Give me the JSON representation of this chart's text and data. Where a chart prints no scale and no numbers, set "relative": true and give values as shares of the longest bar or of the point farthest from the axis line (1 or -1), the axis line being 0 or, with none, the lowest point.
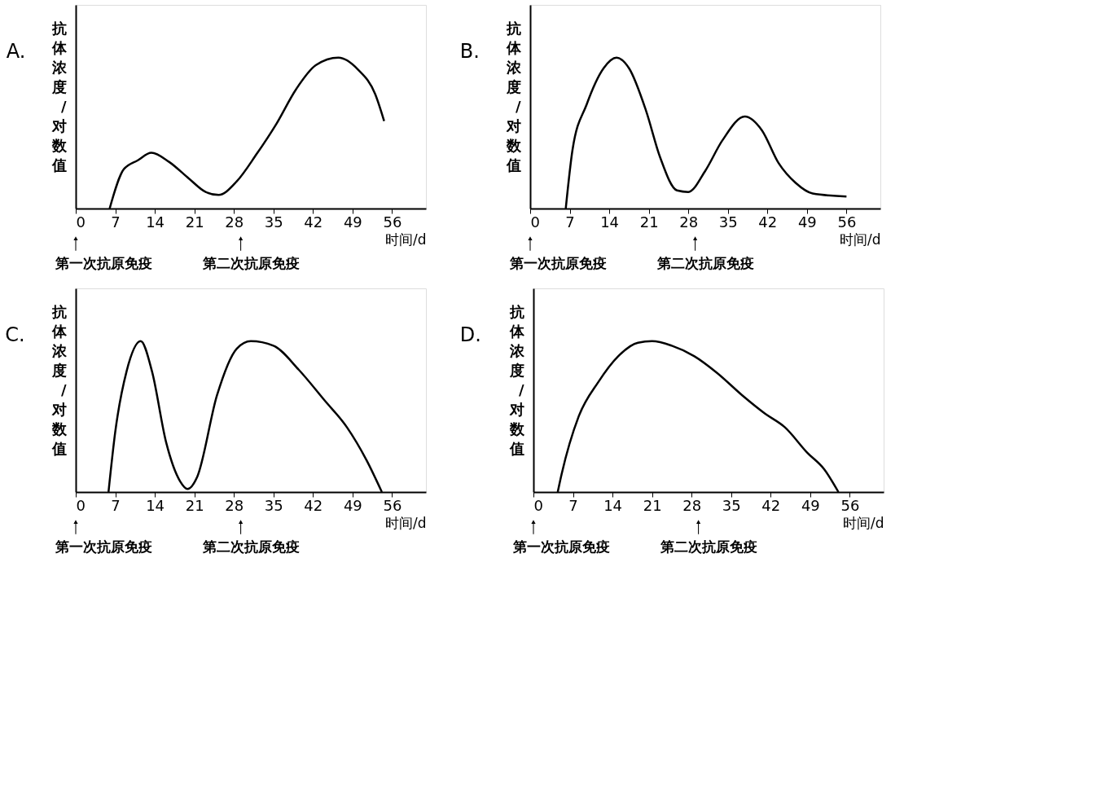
{
  "chart_data": [
    {
      "type": "line",
      "title": "A.",
      "xlabel": "时间/d",
      "ylabel": "抗体浓度/对数值",
      "relative": true,
      "xlim": [
        0,
        62
      ],
      "xticks": [
        0,
        7,
        14,
        21,
        28,
        35,
        42,
        49,
        56
      ],
      "x": [
        6,
        8.5,
        11,
        13.4,
        16.5,
        20,
        23,
        25.3,
        28.5,
        32,
        35.5,
        39,
        42.5,
        46.5,
        50,
        53,
        54.6
      ],
      "series": [
        {
          "color": "#000000",
          "values": [
            0,
            0.26,
            0.32,
            0.37,
            0.31,
            0.2,
            0.11,
            0.09,
            0.18,
            0.36,
            0.56,
            0.79,
            0.95,
            1,
            0.92,
            0.76,
            0.58
          ]
        }
      ],
      "annotations": [
        "第一次抗原免疫",
        "第二次抗原免疫"
      ]
    },
    {
      "type": "line",
      "title": "B.",
      "xlabel": "时间/d",
      "ylabel": "抗体浓度/对数值",
      "relative": true,
      "xlim": [
        0,
        62
      ],
      "xticks": [
        0,
        7,
        14,
        21,
        28,
        35,
        42,
        49,
        56
      ],
      "x": [
        6.3,
        7.5,
        10,
        13,
        15.3,
        17.5,
        20.5,
        23,
        26,
        28,
        31,
        34,
        38,
        41,
        44,
        47,
        50,
        56
      ],
      "series": [
        {
          "color": "#000000",
          "values": [
            0,
            0.39,
            0.69,
            0.93,
            1,
            0.93,
            0.65,
            0.34,
            0.12,
            0.11,
            0.25,
            0.45,
            0.61,
            0.52,
            0.3,
            0.17,
            0.1,
            0.08
          ]
        }
      ],
      "annotations": [
        "第一次抗原免疫",
        "第二次抗原免疫"
      ]
    },
    {
      "type": "line",
      "title": "C.",
      "xlabel": "时间/d",
      "ylabel": "抗体浓度/对数值",
      "relative": true,
      "xlim": [
        0,
        62
      ],
      "xticks": [
        0,
        7,
        14,
        21,
        28,
        35,
        42,
        49,
        56
      ],
      "x": [
        5.8,
        7,
        9,
        11.5,
        13.5,
        16,
        18.5,
        19.8,
        21.5,
        25,
        28.5,
        31,
        35,
        39.5,
        44,
        48,
        51.5,
        54.2
      ],
      "series": [
        {
          "color": "#000000",
          "values": [
            0,
            0.4,
            0.8,
            1,
            0.8,
            0.33,
            0.07,
            0.02,
            0.1,
            0.64,
            0.95,
            1,
            0.97,
            0.81,
            0.61,
            0.43,
            0.21,
            0
          ]
        }
      ],
      "annotations": [
        "第一次抗原免疫",
        "第二次抗原免疫"
      ]
    },
    {
      "type": "line",
      "title": "D.",
      "xlabel": "时间/d",
      "ylabel": "抗体浓度/对数值",
      "relative": true,
      "xlim": [
        0,
        62
      ],
      "xticks": [
        0,
        7,
        14,
        21,
        28,
        35,
        42,
        49,
        56
      ],
      "x": [
        4.3,
        5,
        8,
        11.5,
        15,
        18.5,
        21,
        24.5,
        28.5,
        32.5,
        37,
        41,
        44.5,
        48.5,
        51.5,
        54
      ],
      "series": [
        {
          "color": "#000000",
          "values": [
            0,
            0.12,
            0.5,
            0.73,
            0.9,
            0.99,
            1,
            0.97,
            0.9,
            0.79,
            0.64,
            0.52,
            0.43,
            0.26,
            0.15,
            0
          ]
        }
      ],
      "annotations": [
        "第一次抗原免疫",
        "第二次抗原免疫"
      ]
    }
  ]
}
